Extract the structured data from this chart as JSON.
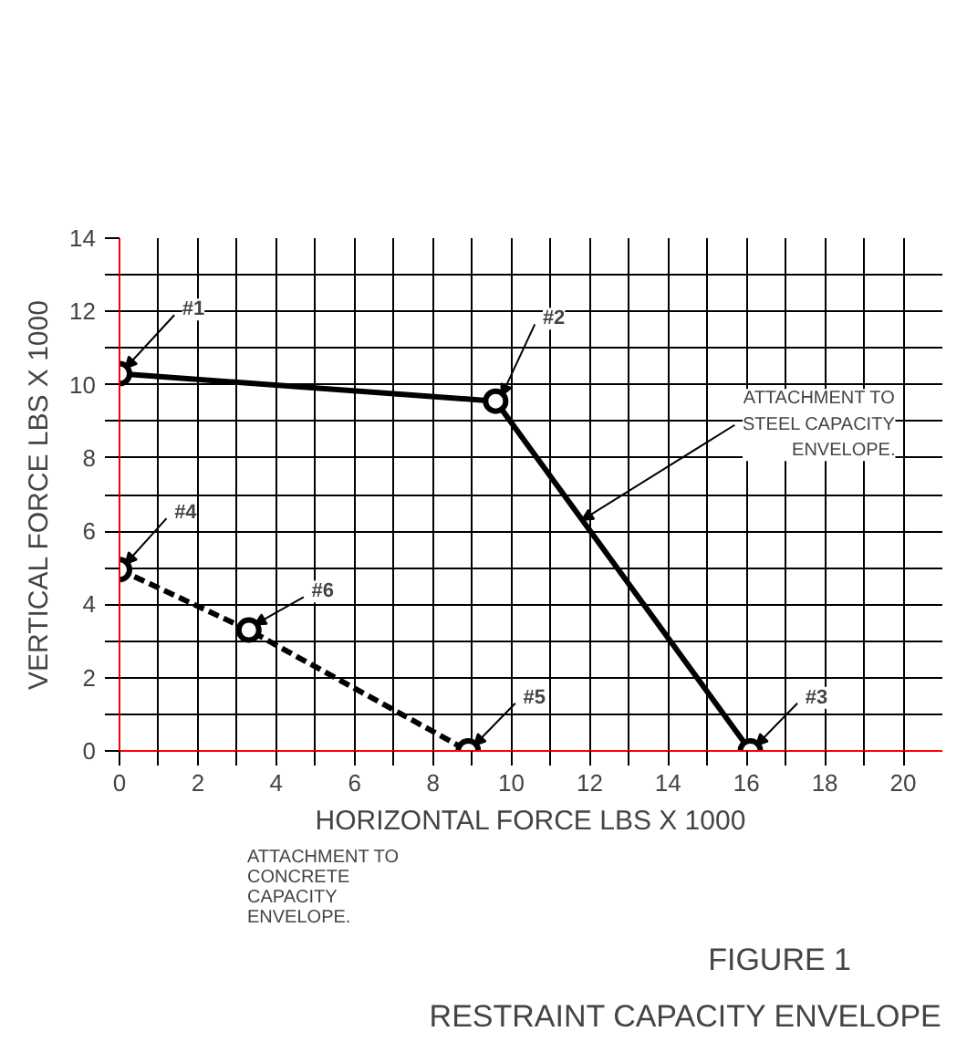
{
  "chart_data": {
    "type": "line",
    "title": "FIGURE 1",
    "subtitle": "RESTRAINT CAPACITY ENVELOPE",
    "xlabel": "HORIZONTAL FORCE LBS X 1000",
    "ylabel": "VERTICAL FORCE LBS X 1000",
    "series": [
      {
        "color": "#000000",
        "line_style": "solid",
        "x": [
          0,
          9.6,
          16.1
        ],
        "values": [
          10.3,
          9.55,
          0
        ]
      },
      {
        "color": "#000000",
        "line_style": "dashed",
        "x": [
          0,
          3.3,
          8.9
        ],
        "values": [
          4.95,
          3.3,
          0
        ]
      }
    ],
    "marker": "circle",
    "grid": true,
    "xlim": [
      0,
      21
    ],
    "ylim": [
      0,
      14
    ],
    "xticks": [
      0,
      {
        "value": 1,
        "label": null
      },
      2,
      {
        "value": 3,
        "label": null
      },
      4,
      {
        "value": 5,
        "label": null
      },
      6,
      {
        "value": 7,
        "label": null
      },
      8,
      {
        "value": 9,
        "label": null
      },
      10,
      {
        "value": 11,
        "label": null
      },
      12,
      {
        "value": 13,
        "label": null
      },
      14,
      {
        "value": 15,
        "label": null
      },
      16,
      {
        "value": 17,
        "label": null
      },
      18,
      {
        "value": 19,
        "label": null
      },
      20
    ],
    "yticks": [
      0,
      {
        "value": 1,
        "label": null
      },
      2,
      {
        "value": 3,
        "label": null
      },
      4,
      {
        "value": 5,
        "label": null
      },
      6,
      {
        "value": 7,
        "label": null
      },
      8,
      {
        "value": 9,
        "label": null
      },
      10,
      {
        "value": 11,
        "label": null
      },
      12,
      {
        "value": 13,
        "label": null
      },
      14
    ],
    "annotations": [
      {
        "text": "#1",
        "x": 0,
        "y": 10.3
      },
      {
        "text": "#2",
        "x": 9.6,
        "y": 9.55
      },
      {
        "text": "#3",
        "x": 16.1,
        "y": 0
      },
      {
        "text": "#4",
        "x": 0,
        "y": 4.95
      },
      {
        "text": "#6",
        "x": 3.3,
        "y": 3.3
      },
      {
        "text": "#5",
        "x": 8.9,
        "y": 0
      },
      {
        "text": "ATTACHMENT TO STEEL CAPACITY ENVELOPE.",
        "x": 11.8,
        "y": 6.3
      },
      "ATTACHMENT TO CONCRETE CAPACITY ENVELOPE."
    ]
  }
}
